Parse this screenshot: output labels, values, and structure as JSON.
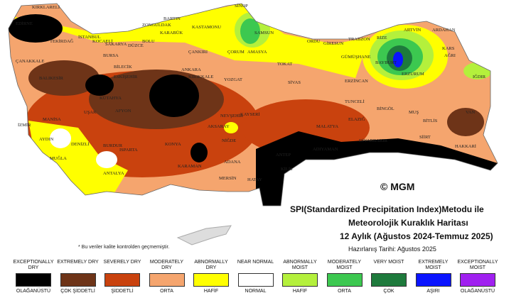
{
  "map": {
    "credit": "© MGM",
    "note": "* Bu veriler kalite kontrolden geçmemiştir.",
    "labels": [
      "SİNOP",
      "BARTIN",
      "ZONGULDAK",
      "KARABÜK",
      "KASTAMONU",
      "SAMSUN",
      "ORDU",
      "GİRESUN",
      "TRABZON",
      "RİZE",
      "ARTVİN",
      "ARDAHAN",
      "KARS",
      "IĞDIR",
      "AĞRI",
      "ERZURUM",
      "BAYBURT",
      "GÜMÜŞHANE",
      "ERZİNCAN",
      "TUNCELİ",
      "BİNGÖL",
      "MUŞ",
      "BİTLİS",
      "VAN",
      "HAKKARİ",
      "SİİRT",
      "DİYARBAKIR",
      "ELAZIĞ",
      "MALATYA",
      "ADIYAMAN",
      "ANTEP",
      "KİLİS",
      "HATAY",
      "ADANA",
      "MERSİN",
      "KARAMAN",
      "KONYA",
      "NİĞDE",
      "AKSARAY",
      "NEVŞEHİR",
      "KAYSERİ",
      "SİVAS",
      "TOKAT",
      "AMASYA",
      "ÇORUM",
      "YOZGAT",
      "KIRIKKALE",
      "ANKARA",
      "ÇANKIRI",
      "ESKİŞEHİR",
      "BİLECİK",
      "BOLU",
      "DÜZCE",
      "SAKARYA",
      "KOCAELİ",
      "İSTANBUL",
      "KIRKLARELİ",
      "EDİRNE",
      "TEKİRDAĞ",
      "ÇANAKKALE",
      "BALIKESİR",
      "BURSA",
      "MANİSA",
      "İZMİR",
      "AYDIN",
      "MUĞLA",
      "DENİZLİ",
      "UŞAK",
      "KÜTAHYA",
      "AFYON",
      "ISPARTA",
      "BURDUR",
      "ANTALYA"
    ]
  },
  "title": {
    "line1": "SPI(Standardized Precipitation Index)Metodu ile",
    "line2": "Meteorolojik Kuraklık Haritası",
    "line3": "12 Aylık (Ağustos 2024-Temmuz 2025)",
    "date": "Hazırlanış Tarihi: Ağustos 2025"
  },
  "legend": {
    "items": [
      {
        "en": "EXCEPTIONALLY DRY",
        "tr": "OLAĞANÜSTÜ",
        "color": "#000000"
      },
      {
        "en": "EXTREMELY DRY",
        "tr": "ÇOK ŞİDDETLİ",
        "color": "#6e3418"
      },
      {
        "en": "SEVERELY DRY",
        "tr": "ŞİDDETLİ",
        "color": "#c9420e"
      },
      {
        "en": "MODERATELY DRY",
        "tr": "ORTA",
        "color": "#f5a56e"
      },
      {
        "en": "ABNORMALLY DRY",
        "tr": "HAFİF",
        "color": "#ffff00"
      },
      {
        "en": "NEAR NORMAL",
        "tr": "NORMAL",
        "color": "#ffffff"
      },
      {
        "en": "ABNORMALLY MOIST",
        "tr": "HAFİF",
        "color": "#b4f03c"
      },
      {
        "en": "MODERATELY MOIST",
        "tr": "ORTA",
        "color": "#3cc850"
      },
      {
        "en": "VERY MOIST",
        "tr": "ÇOK",
        "color": "#1e7a3c"
      },
      {
        "en": "EXTREMELY MOIST",
        "tr": "AŞIRI",
        "color": "#0a14ff"
      },
      {
        "en": "EXCEPTIONALLY MOIST",
        "tr": "OLAĞANÜSTÜ",
        "color": "#a020f0"
      }
    ]
  }
}
